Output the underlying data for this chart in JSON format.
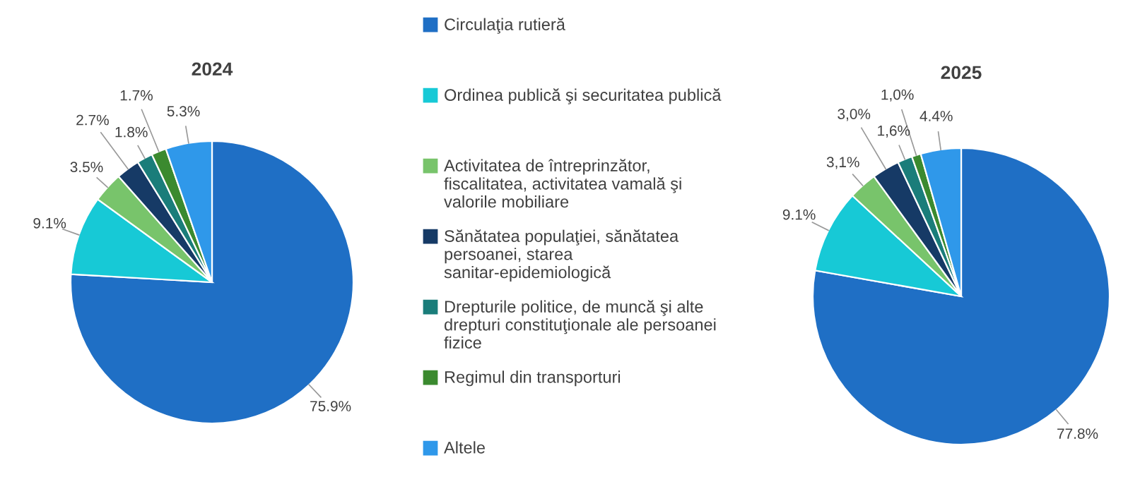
{
  "chart_data": [
    {
      "type": "pie",
      "title": "2024",
      "categories": [
        "Circulaţia rutieră",
        "Ordinea publică şi securitatea publică",
        "Activitatea de întreprinzător, fiscalitatea, activitatea vamală şi valorile mobiliare",
        "Sănătatea populaţiei, sănătatea persoanei, starea sanitar-epidemiologică",
        "Drepturile politice, de muncă şi alte drepturi constituţionale ale persoanei fizice",
        "Regimul din transporturi",
        "Altele"
      ],
      "values": [
        75.9,
        9.1,
        3.5,
        2.7,
        1.8,
        1.7,
        5.3
      ],
      "colors": [
        "#1f6fc5",
        "#17c9d6",
        "#78c46b",
        "#163a66",
        "#1a7d7a",
        "#3b8a2f",
        "#2f98ea"
      ],
      "value_labels": [
        "75.9%",
        "9.1%",
        "3.5%",
        "2.7%",
        "1.8%",
        "1.7%",
        "5.3%"
      ],
      "legend": "right"
    },
    {
      "type": "pie",
      "title": "2025",
      "categories": [
        null,
        null,
        null,
        null,
        null,
        null,
        null
      ],
      "values": [
        77.8,
        9.1,
        3.1,
        3.0,
        1.6,
        1.0,
        4.4
      ],
      "colors": [
        "#1f6fc5",
        "#17c9d6",
        "#78c46b",
        "#163a66",
        "#1a7d7a",
        "#3b8a2f",
        "#2f98ea"
      ],
      "value_labels": [
        "77.8%",
        "9.1%",
        "3,1%",
        "3,0%",
        "1,6%",
        "1,0%",
        "4.4%"
      ]
    }
  ]
}
